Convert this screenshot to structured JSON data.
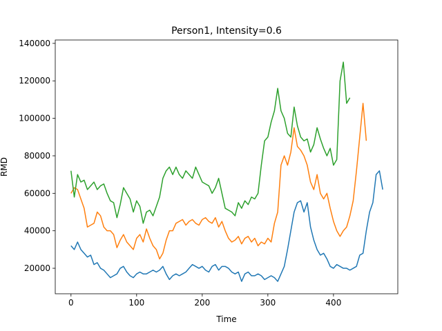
{
  "chart_data": {
    "type": "line",
    "title": "Person1, Intensity=0.6",
    "x_label": "Time",
    "y_label": "RMD",
    "x": [
      0,
      5,
      10,
      15,
      20,
      25,
      30,
      35,
      40,
      45,
      50,
      55,
      60,
      65,
      70,
      75,
      80,
      85,
      90,
      95,
      100,
      105,
      110,
      115,
      120,
      125,
      130,
      135,
      140,
      145,
      150,
      155,
      160,
      165,
      170,
      175,
      180,
      185,
      190,
      195,
      200,
      205,
      210,
      215,
      220,
      225,
      230,
      235,
      240,
      245,
      250,
      255,
      260,
      265,
      270,
      275,
      280,
      285,
      290,
      295,
      300,
      305,
      310,
      315,
      320,
      325,
      330,
      335,
      340,
      345,
      350,
      355,
      360,
      365,
      370,
      375,
      380,
      385,
      390,
      395,
      400,
      405,
      410,
      415,
      420,
      425,
      430,
      435,
      440,
      445,
      450,
      455,
      460,
      465,
      470,
      475
    ],
    "series": [
      {
        "color": "#1f77b4",
        "values": [
          32000,
          30000,
          34000,
          30000,
          28000,
          26000,
          27000,
          22000,
          23000,
          20000,
          19000,
          17000,
          15000,
          16000,
          17000,
          20000,
          21000,
          18000,
          16000,
          15000,
          17000,
          18000,
          17000,
          17000,
          18000,
          19000,
          18000,
          19000,
          21000,
          17000,
          14000,
          16000,
          17000,
          16000,
          17000,
          18000,
          20000,
          22000,
          21000,
          20000,
          21000,
          19000,
          18000,
          21000,
          22000,
          19000,
          21000,
          21000,
          20000,
          18000,
          17000,
          18000,
          13000,
          17000,
          18000,
          16000,
          16000,
          17000,
          16000,
          14000,
          15000,
          16000,
          15000,
          13000,
          17000,
          21000,
          30000,
          40000,
          50000,
          55000,
          56000,
          50000,
          55000,
          42000,
          35000,
          30000,
          27000,
          28000,
          25000,
          21000,
          20000,
          22000,
          21000,
          20000,
          20000,
          19000,
          20000,
          21000,
          27000,
          28000,
          40000,
          50000,
          55000,
          70000,
          72000,
          62000
        ]
      },
      {
        "color": "#ff7f0e",
        "values": [
          60000,
          63000,
          62000,
          57000,
          52000,
          42000,
          43000,
          44000,
          50000,
          48000,
          42000,
          40000,
          40000,
          38000,
          31000,
          35000,
          38000,
          34000,
          32000,
          30000,
          36000,
          38000,
          34000,
          41000,
          36000,
          32000,
          30000,
          25000,
          28000,
          35000,
          40000,
          40000,
          44000,
          45000,
          46000,
          43000,
          45000,
          46000,
          44000,
          43000,
          46000,
          47000,
          45000,
          44000,
          47000,
          42000,
          45000,
          40000,
          36000,
          34000,
          35000,
          37000,
          33000,
          36000,
          37000,
          34000,
          36000,
          32000,
          34000,
          33000,
          36000,
          34000,
          44000,
          50000,
          75000,
          80000,
          75000,
          82000,
          95000,
          85000,
          83000,
          80000,
          75000,
          66000,
          62000,
          70000,
          60000,
          57000,
          60000,
          52000,
          45000,
          40000,
          37000,
          40000,
          42000,
          48000,
          56000,
          72000,
          90000,
          108000,
          88000,
          null,
          null,
          null,
          null,
          null
        ]
      },
      {
        "color": "#2ca02c",
        "values": [
          72000,
          58000,
          70000,
          66000,
          67000,
          62000,
          64000,
          66000,
          62000,
          64000,
          65000,
          60000,
          56000,
          55000,
          47000,
          54000,
          63000,
          60000,
          57000,
          50000,
          56000,
          53000,
          44000,
          50000,
          51000,
          48000,
          53000,
          58000,
          68000,
          72000,
          74000,
          70000,
          74000,
          70000,
          68000,
          72000,
          70000,
          68000,
          74000,
          70000,
          66000,
          65000,
          64000,
          60000,
          63000,
          68000,
          60000,
          52000,
          51000,
          50000,
          48000,
          55000,
          52000,
          56000,
          54000,
          58000,
          57000,
          60000,
          75000,
          88000,
          90000,
          98000,
          104000,
          116000,
          104000,
          100000,
          92000,
          90000,
          106000,
          96000,
          90000,
          88000,
          89000,
          82000,
          86000,
          95000,
          89000,
          84000,
          80000,
          84000,
          75000,
          78000,
          120000,
          130000,
          108000,
          111000,
          null,
          null,
          null,
          null,
          null,
          null,
          null,
          null,
          null,
          null
        ]
      }
    ],
    "xlim": [
      -24,
      498
    ],
    "xticks": [
      0,
      100,
      200,
      300,
      400
    ],
    "ylim": [
      6400,
      141800
    ],
    "yticks": [
      20000,
      40000,
      60000,
      80000,
      100000,
      120000,
      140000
    ],
    "grid": false
  }
}
